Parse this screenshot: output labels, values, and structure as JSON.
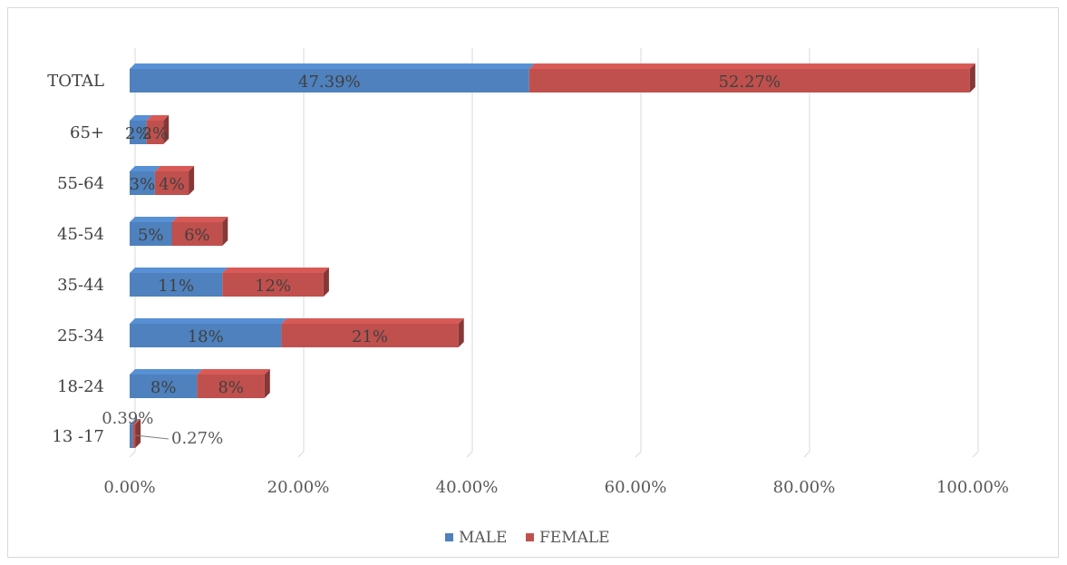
{
  "chart_data": {
    "type": "bar",
    "orientation": "horizontal",
    "stacked": true,
    "categories": [
      "TOTAL",
      "65+",
      "55-64",
      "45-54",
      "35-44",
      "25-34",
      "18-24",
      "13 -17"
    ],
    "series": [
      {
        "name": "MALE",
        "color": "#4e81bd",
        "values": [
          47.39,
          2,
          3,
          5,
          11,
          18,
          8,
          0.39
        ],
        "labels": [
          "47.39%",
          "2%",
          "3%",
          "5%",
          "11%",
          "18%",
          "8%",
          "0.39%"
        ]
      },
      {
        "name": "FEMALE",
        "color": "#c0504d",
        "values": [
          52.27,
          2,
          4,
          6,
          12,
          21,
          8,
          0.27
        ],
        "labels": [
          "52.27%",
          "2%",
          "4%",
          "6%",
          "12%",
          "21%",
          "8%",
          "0.27%"
        ]
      }
    ],
    "x_ticks": [
      "0.00%",
      "20.00%",
      "40.00%",
      "60.00%",
      "80.00%",
      "100.00%"
    ],
    "xlim": [
      0,
      100
    ],
    "grid": true,
    "legend": "bottom",
    "bar_style": "3d"
  }
}
